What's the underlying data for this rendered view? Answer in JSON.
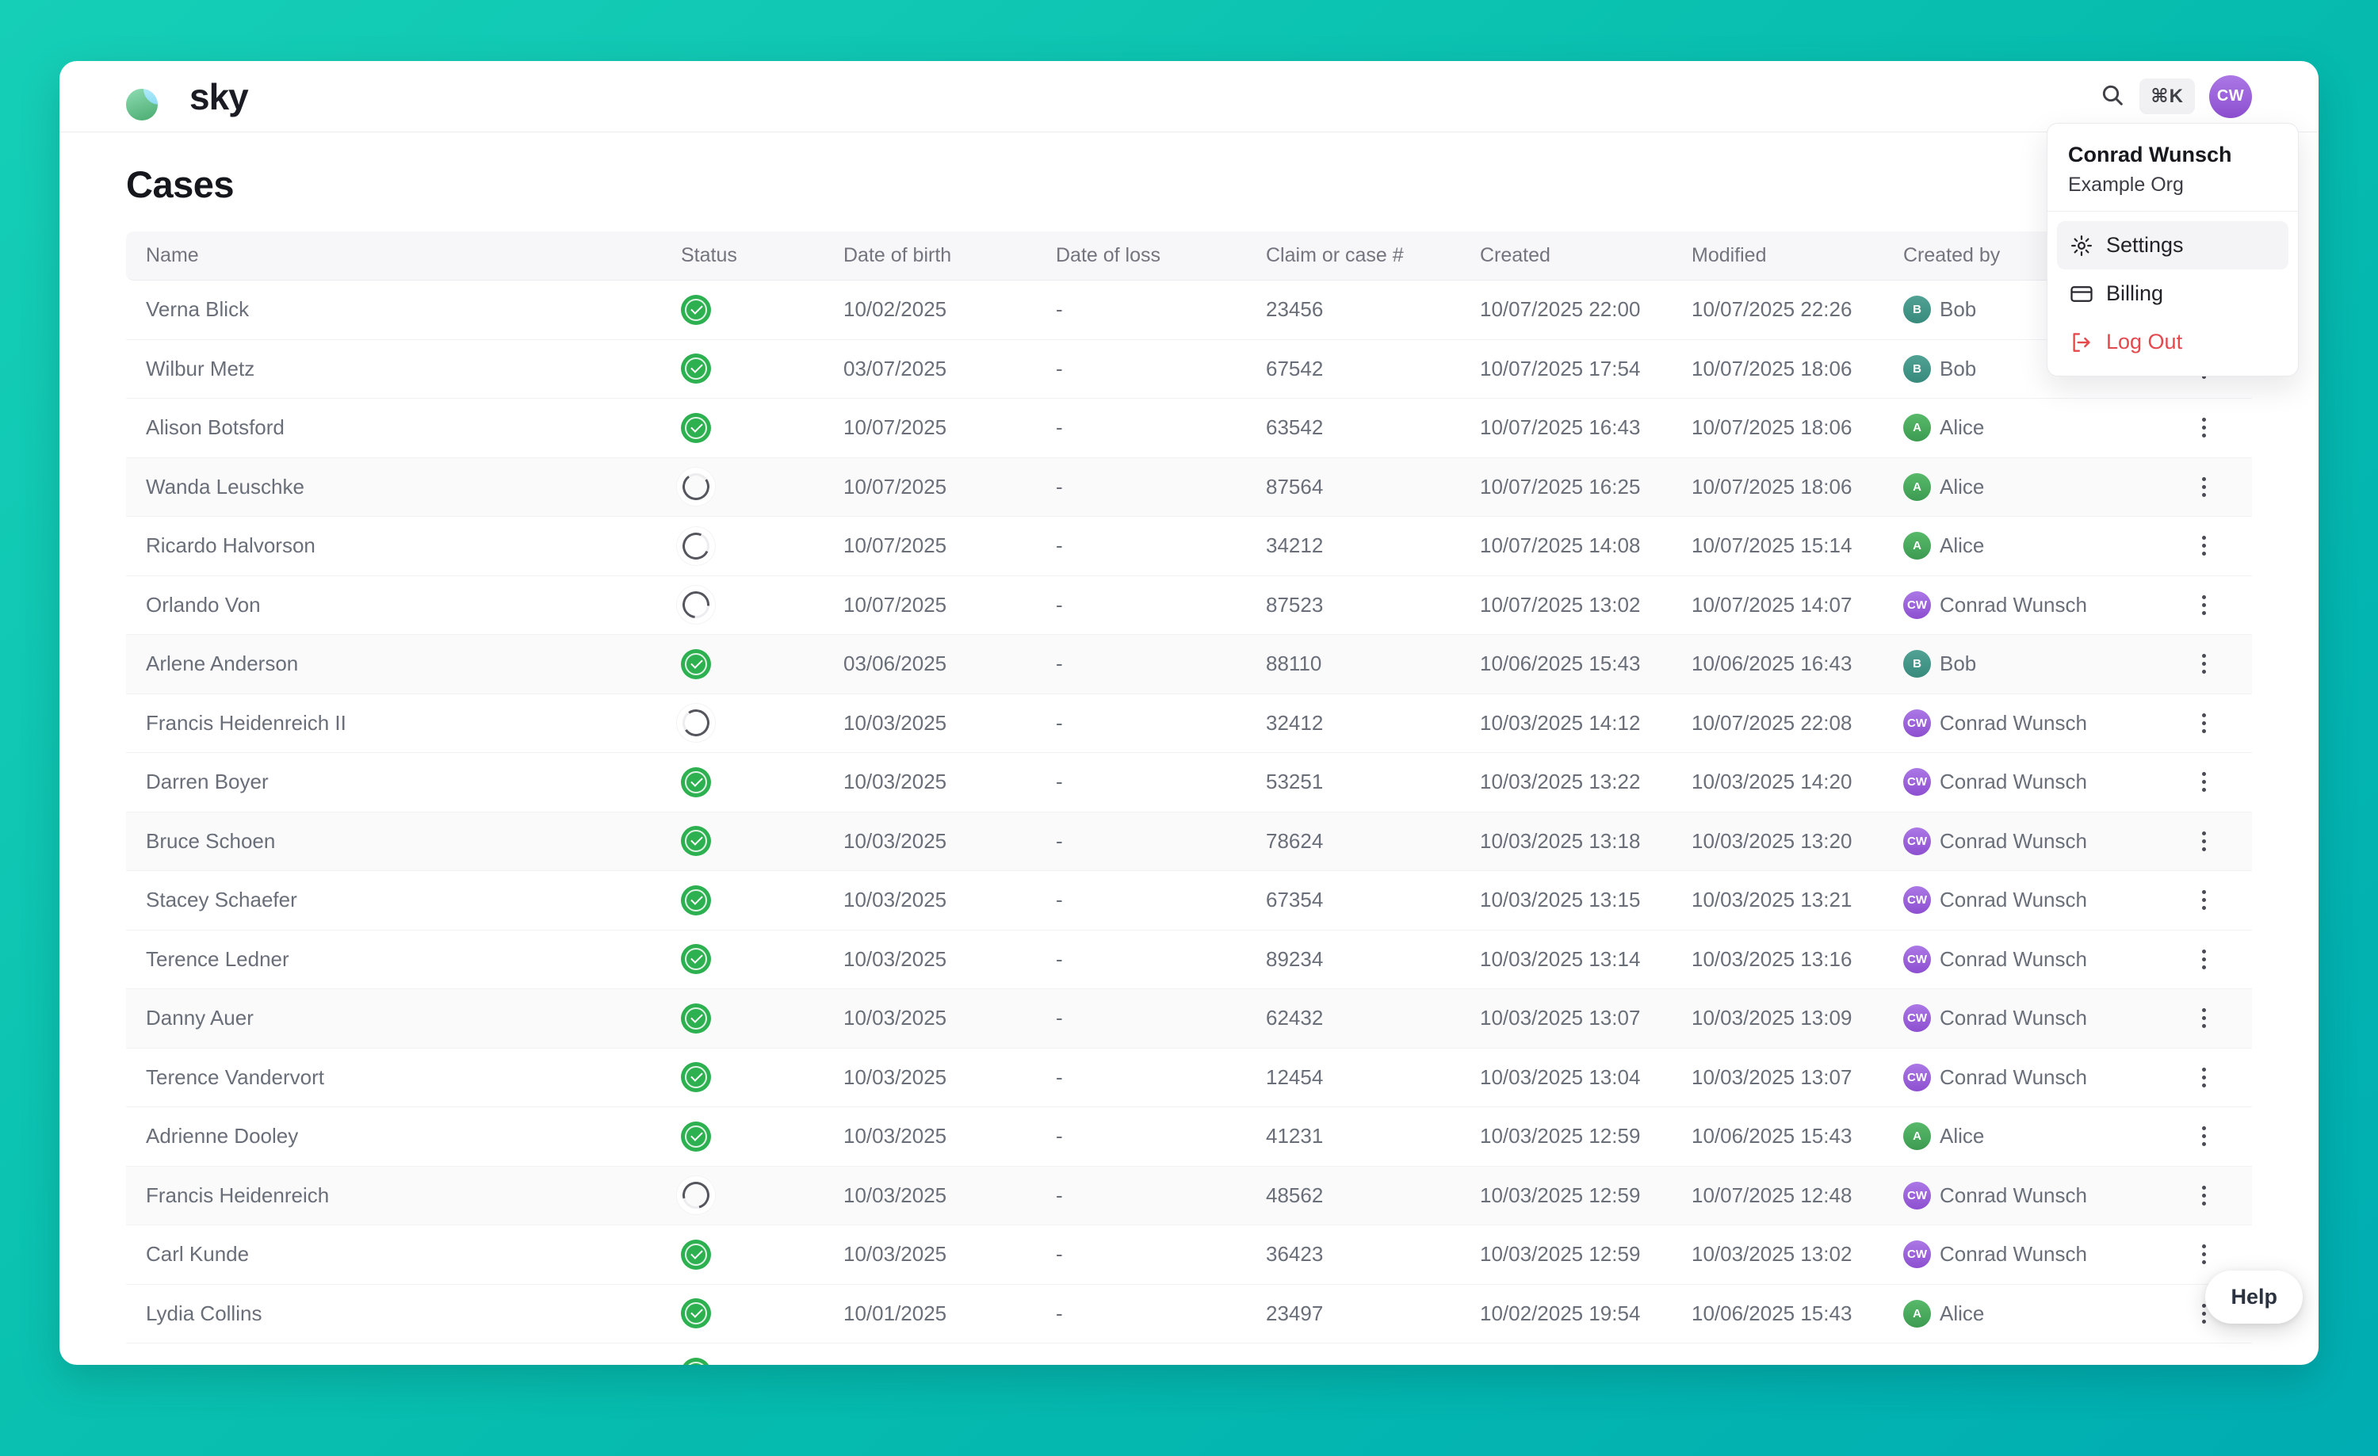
{
  "brand": {
    "name": "sky"
  },
  "topbar": {
    "search_shortcut": "⌘K",
    "avatar_initials": "CW"
  },
  "user_menu": {
    "name": "Conrad Wunsch",
    "org": "Example Org",
    "items": [
      {
        "label": "Settings",
        "icon": "gear-icon"
      },
      {
        "label": "Billing",
        "icon": "credit-card-icon"
      },
      {
        "label": "Log Out",
        "icon": "logout-icon"
      }
    ]
  },
  "page": {
    "title": "Cases"
  },
  "table": {
    "columns": [
      "Name",
      "Status",
      "Date of birth",
      "Date of loss",
      "Claim or case #",
      "Created",
      "Modified",
      "Created by"
    ],
    "rows": [
      {
        "name": "Verna Blick",
        "status": "done",
        "dob": "10/02/2025",
        "date_of_loss": "-",
        "claim": "23456",
        "created": "10/07/2025 22:00",
        "modified": "10/07/2025 22:26",
        "created_by": {
          "initials": "B",
          "label": "Bob",
          "color": "teal"
        }
      },
      {
        "name": "Wilbur Metz",
        "status": "done",
        "dob": "03/07/2025",
        "date_of_loss": "-",
        "claim": "67542",
        "created": "10/07/2025 17:54",
        "modified": "10/07/2025 18:06",
        "created_by": {
          "initials": "B",
          "label": "Bob",
          "color": "teal"
        }
      },
      {
        "name": "Alison Botsford",
        "status": "done",
        "dob": "10/07/2025",
        "date_of_loss": "-",
        "claim": "63542",
        "created": "10/07/2025 16:43",
        "modified": "10/07/2025 18:06",
        "created_by": {
          "initials": "A",
          "label": "Alice",
          "color": "green"
        }
      },
      {
        "name": "Wanda Leuschke",
        "status": "processing",
        "dob": "10/07/2025",
        "date_of_loss": "-",
        "claim": "87564",
        "created": "10/07/2025 16:25",
        "modified": "10/07/2025 18:06",
        "created_by": {
          "initials": "A",
          "label": "Alice",
          "color": "green"
        }
      },
      {
        "name": "Ricardo Halvorson",
        "status": "processing",
        "dob": "10/07/2025",
        "date_of_loss": "-",
        "claim": "34212",
        "created": "10/07/2025 14:08",
        "modified": "10/07/2025 15:14",
        "created_by": {
          "initials": "A",
          "label": "Alice",
          "color": "green"
        }
      },
      {
        "name": "Orlando Von",
        "status": "processing",
        "dob": "10/07/2025",
        "date_of_loss": "-",
        "claim": "87523",
        "created": "10/07/2025 13:02",
        "modified": "10/07/2025 14:07",
        "created_by": {
          "initials": "CW",
          "label": "Conrad Wunsch",
          "color": "purple"
        }
      },
      {
        "name": "Arlene Anderson",
        "status": "done",
        "dob": "03/06/2025",
        "date_of_loss": "-",
        "claim": "88110",
        "created": "10/06/2025 15:43",
        "modified": "10/06/2025 16:43",
        "created_by": {
          "initials": "B",
          "label": "Bob",
          "color": "teal"
        }
      },
      {
        "name": "Francis Heidenreich II",
        "status": "processing",
        "dob": "10/03/2025",
        "date_of_loss": "-",
        "claim": "32412",
        "created": "10/03/2025 14:12",
        "modified": "10/07/2025 22:08",
        "created_by": {
          "initials": "CW",
          "label": "Conrad Wunsch",
          "color": "purple"
        }
      },
      {
        "name": "Darren Boyer",
        "status": "done",
        "dob": "10/03/2025",
        "date_of_loss": "-",
        "claim": "53251",
        "created": "10/03/2025 13:22",
        "modified": "10/03/2025 14:20",
        "created_by": {
          "initials": "CW",
          "label": "Conrad Wunsch",
          "color": "purple"
        }
      },
      {
        "name": "Bruce Schoen",
        "status": "done",
        "dob": "10/03/2025",
        "date_of_loss": "-",
        "claim": "78624",
        "created": "10/03/2025 13:18",
        "modified": "10/03/2025 13:20",
        "created_by": {
          "initials": "CW",
          "label": "Conrad Wunsch",
          "color": "purple"
        }
      },
      {
        "name": "Stacey Schaefer",
        "status": "done",
        "dob": "10/03/2025",
        "date_of_loss": "-",
        "claim": "67354",
        "created": "10/03/2025 13:15",
        "modified": "10/03/2025 13:21",
        "created_by": {
          "initials": "CW",
          "label": "Conrad Wunsch",
          "color": "purple"
        }
      },
      {
        "name": "Terence Ledner",
        "status": "done",
        "dob": "10/03/2025",
        "date_of_loss": "-",
        "claim": "89234",
        "created": "10/03/2025 13:14",
        "modified": "10/03/2025 13:16",
        "created_by": {
          "initials": "CW",
          "label": "Conrad Wunsch",
          "color": "purple"
        }
      },
      {
        "name": "Danny Auer",
        "status": "done",
        "dob": "10/03/2025",
        "date_of_loss": "-",
        "claim": "62432",
        "created": "10/03/2025 13:07",
        "modified": "10/03/2025 13:09",
        "created_by": {
          "initials": "CW",
          "label": "Conrad Wunsch",
          "color": "purple"
        }
      },
      {
        "name": "Terence Vandervort",
        "status": "done",
        "dob": "10/03/2025",
        "date_of_loss": "-",
        "claim": "12454",
        "created": "10/03/2025 13:04",
        "modified": "10/03/2025 13:07",
        "created_by": {
          "initials": "CW",
          "label": "Conrad Wunsch",
          "color": "purple"
        }
      },
      {
        "name": "Adrienne Dooley",
        "status": "done",
        "dob": "10/03/2025",
        "date_of_loss": "-",
        "claim": "41231",
        "created": "10/03/2025 12:59",
        "modified": "10/06/2025 15:43",
        "created_by": {
          "initials": "A",
          "label": "Alice",
          "color": "green"
        }
      },
      {
        "name": "Francis Heidenreich",
        "status": "processing",
        "dob": "10/03/2025",
        "date_of_loss": "-",
        "claim": "48562",
        "created": "10/03/2025 12:59",
        "modified": "10/07/2025 12:48",
        "created_by": {
          "initials": "CW",
          "label": "Conrad Wunsch",
          "color": "purple"
        }
      },
      {
        "name": "Carl Kunde",
        "status": "done",
        "dob": "10/03/2025",
        "date_of_loss": "-",
        "claim": "36423",
        "created": "10/03/2025 12:59",
        "modified": "10/03/2025 13:02",
        "created_by": {
          "initials": "CW",
          "label": "Conrad Wunsch",
          "color": "purple"
        }
      },
      {
        "name": "Lydia Collins",
        "status": "done",
        "dob": "10/01/2025",
        "date_of_loss": "-",
        "claim": "23497",
        "created": "10/02/2025 19:54",
        "modified": "10/06/2025 15:43",
        "created_by": {
          "initials": "A",
          "label": "Alice",
          "color": "green"
        }
      }
    ],
    "partial_row": {
      "status": "done"
    }
  },
  "help": {
    "label": "Help"
  },
  "colors": {
    "background_teal": "#06bcae",
    "status_green": "#2db150",
    "danger_red": "#e5484d",
    "avatar_purple": "#8d4fd0",
    "avatar_green": "#3c9b51",
    "avatar_teal": "#378a7c"
  }
}
